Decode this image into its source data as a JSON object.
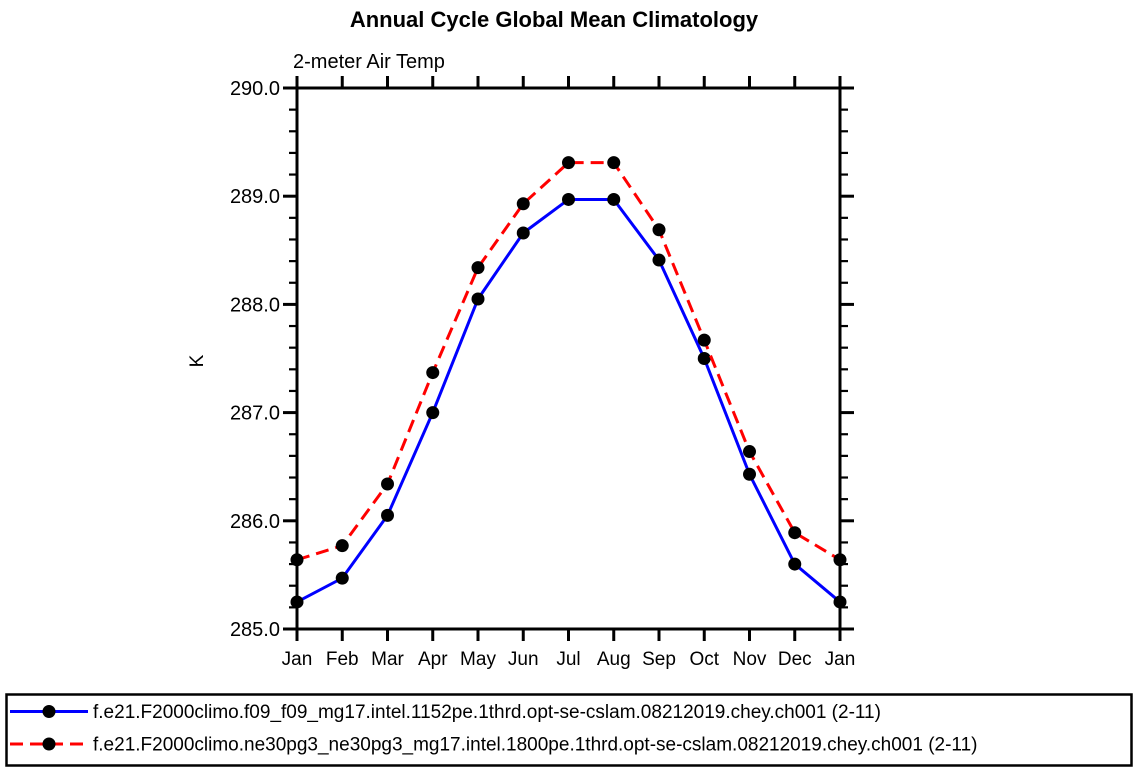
{
  "title": "Annual Cycle Global Mean Climatology",
  "subtitle": "2-meter Air Temp",
  "chart_data": {
    "type": "line",
    "categories": [
      "Jan",
      "Feb",
      "Mar",
      "Apr",
      "May",
      "Jun",
      "Jul",
      "Aug",
      "Sep",
      "Oct",
      "Nov",
      "Dec",
      "Jan"
    ],
    "xlabel": "",
    "ylabel": "K",
    "ylim": [
      285.0,
      290.0
    ],
    "ytick_step": 1.0,
    "ytick_minor_step": 0.2,
    "ytick_labels": [
      "285.0",
      "286.0",
      "287.0",
      "288.0",
      "289.0",
      "290.0"
    ],
    "grid": false,
    "legend_position": "bottom",
    "axis_color": "#000000",
    "marker_color": "#000000",
    "series": [
      {
        "name": "f.e21.F2000climo.f09_f09_mg17.intel.1152pe.1thrd.opt-se-cslam.08212019.chey.ch001 (2-11)",
        "color": "#0000ff",
        "line_style": "solid",
        "marker": "circle",
        "values": [
          285.25,
          285.47,
          286.05,
          287.0,
          288.05,
          288.66,
          288.97,
          288.97,
          288.41,
          287.5,
          286.43,
          285.6,
          285.25
        ]
      },
      {
        "name": "f.e21.F2000climo.ne30pg3_ne30pg3_mg17.intel.1800pe.1thrd.opt-se-cslam.08212019.chey.ch001 (2-11)",
        "color": "#ff0000",
        "line_style": "dashed",
        "marker": "circle",
        "values": [
          285.64,
          285.77,
          286.34,
          287.37,
          288.34,
          288.93,
          289.31,
          289.31,
          288.69,
          287.67,
          286.64,
          285.89,
          285.64
        ]
      }
    ]
  }
}
